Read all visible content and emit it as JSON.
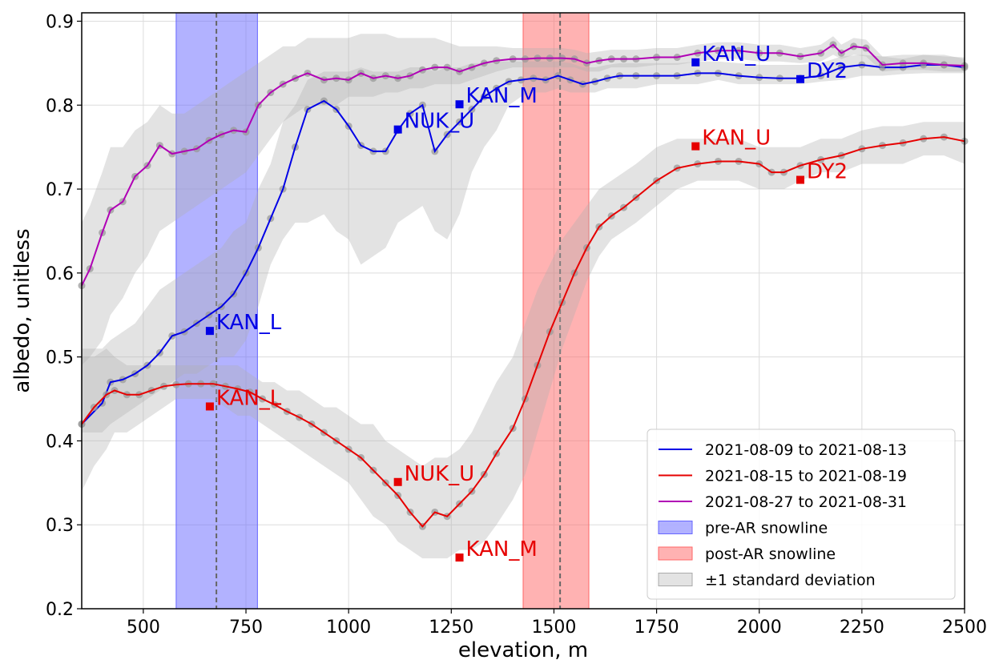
{
  "chart_data": {
    "type": "line",
    "xlabel": "elevation, m",
    "ylabel": "albedo, unitless",
    "xlim": [
      350,
      2500
    ],
    "ylim": [
      0.2,
      0.91
    ],
    "xticks": [
      500,
      750,
      1000,
      1250,
      1500,
      1750,
      2000,
      2250,
      2500
    ],
    "yticks": [
      0.2,
      0.3,
      0.4,
      0.5,
      0.6,
      0.7,
      0.8,
      0.9
    ],
    "grid": true,
    "legend_placement": "lower-right",
    "series": [
      {
        "name": "2021-08-09 to 2021-08-13",
        "color": "#0000e6",
        "x": [
          350,
          400,
          420,
          450,
          480,
          510,
          540,
          570,
          600,
          630,
          660,
          690,
          720,
          750,
          780,
          810,
          840,
          870,
          900,
          940,
          970,
          1000,
          1030,
          1060,
          1090,
          1120,
          1150,
          1180,
          1210,
          1240,
          1270,
          1300,
          1330,
          1360,
          1390,
          1420,
          1450,
          1480,
          1510,
          1540,
          1570,
          1600,
          1630,
          1660,
          1700,
          1750,
          1800,
          1850,
          1900,
          1950,
          2000,
          2050,
          2100,
          2150,
          2200,
          2250,
          2300,
          2350,
          2400,
          2450,
          2500
        ],
        "y": [
          0.42,
          0.445,
          0.47,
          0.473,
          0.48,
          0.49,
          0.505,
          0.525,
          0.53,
          0.54,
          0.55,
          0.56,
          0.575,
          0.6,
          0.63,
          0.665,
          0.7,
          0.75,
          0.795,
          0.805,
          0.795,
          0.775,
          0.752,
          0.745,
          0.745,
          0.77,
          0.79,
          0.8,
          0.745,
          0.765,
          0.78,
          0.795,
          0.81,
          0.82,
          0.828,
          0.83,
          0.832,
          0.83,
          0.835,
          0.83,
          0.825,
          0.828,
          0.832,
          0.835,
          0.835,
          0.835,
          0.835,
          0.838,
          0.838,
          0.835,
          0.833,
          0.832,
          0.832,
          0.835,
          0.845,
          0.848,
          0.845,
          0.845,
          0.848,
          0.848,
          0.845
        ],
        "std_lower": [
          0.41,
          0.41,
          0.42,
          0.43,
          0.44,
          0.45,
          0.46,
          0.47,
          0.48,
          0.48,
          0.49,
          0.5,
          0.5,
          0.52,
          0.56,
          0.61,
          0.64,
          0.66,
          0.66,
          0.67,
          0.65,
          0.64,
          0.61,
          0.62,
          0.63,
          0.66,
          0.67,
          0.68,
          0.65,
          0.64,
          0.67,
          0.72,
          0.75,
          0.77,
          0.8,
          0.81,
          0.815,
          0.815,
          0.82,
          0.815,
          0.815,
          0.815,
          0.82,
          0.82,
          0.82,
          0.825,
          0.825,
          0.825,
          0.83,
          0.825,
          0.825,
          0.825,
          0.825,
          0.828,
          0.83,
          0.835,
          0.835,
          0.837,
          0.838,
          0.838,
          0.838
        ],
        "std_upper": [
          0.51,
          0.51,
          0.52,
          0.53,
          0.54,
          0.56,
          0.58,
          0.59,
          0.6,
          0.61,
          0.62,
          0.63,
          0.65,
          0.66,
          0.7,
          0.73,
          0.78,
          0.8,
          0.83,
          0.84,
          0.84,
          0.84,
          0.845,
          0.84,
          0.84,
          0.84,
          0.845,
          0.845,
          0.84,
          0.845,
          0.845,
          0.85,
          0.85,
          0.852,
          0.852,
          0.852,
          0.852,
          0.852,
          0.852,
          0.85,
          0.845,
          0.845,
          0.848,
          0.85,
          0.85,
          0.85,
          0.85,
          0.852,
          0.852,
          0.85,
          0.848,
          0.848,
          0.848,
          0.85,
          0.858,
          0.86,
          0.858,
          0.855,
          0.86,
          0.86,
          0.855
        ]
      },
      {
        "name": "2021-08-15 to 2021-08-19",
        "color": "#e60000",
        "x": [
          350,
          380,
          410,
          430,
          460,
          490,
          520,
          550,
          580,
          610,
          640,
          670,
          700,
          730,
          760,
          790,
          820,
          850,
          880,
          910,
          940,
          970,
          1000,
          1030,
          1060,
          1090,
          1120,
          1150,
          1180,
          1210,
          1240,
          1270,
          1300,
          1330,
          1360,
          1400,
          1430,
          1460,
          1490,
          1520,
          1550,
          1580,
          1610,
          1640,
          1670,
          1700,
          1750,
          1800,
          1850,
          1900,
          1950,
          2000,
          2030,
          2060,
          2100,
          2150,
          2200,
          2250,
          2300,
          2350,
          2400,
          2450,
          2500
        ],
        "y": [
          0.42,
          0.44,
          0.455,
          0.46,
          0.455,
          0.455,
          0.46,
          0.465,
          0.467,
          0.468,
          0.468,
          0.468,
          0.465,
          0.462,
          0.458,
          0.45,
          0.443,
          0.435,
          0.428,
          0.42,
          0.41,
          0.4,
          0.39,
          0.38,
          0.365,
          0.35,
          0.335,
          0.315,
          0.298,
          0.315,
          0.31,
          0.325,
          0.34,
          0.36,
          0.385,
          0.415,
          0.45,
          0.49,
          0.53,
          0.565,
          0.6,
          0.63,
          0.655,
          0.668,
          0.678,
          0.69,
          0.71,
          0.725,
          0.73,
          0.733,
          0.733,
          0.73,
          0.72,
          0.72,
          0.728,
          0.735,
          0.74,
          0.748,
          0.752,
          0.755,
          0.76,
          0.762,
          0.757
        ],
        "std_lower": [
          0.34,
          0.37,
          0.39,
          0.41,
          0.41,
          0.42,
          0.43,
          0.44,
          0.45,
          0.45,
          0.45,
          0.45,
          0.44,
          0.43,
          0.43,
          0.42,
          0.41,
          0.4,
          0.39,
          0.38,
          0.37,
          0.36,
          0.35,
          0.33,
          0.31,
          0.3,
          0.28,
          0.27,
          0.26,
          0.26,
          0.26,
          0.27,
          0.27,
          0.28,
          0.3,
          0.33,
          0.36,
          0.41,
          0.46,
          0.51,
          0.55,
          0.59,
          0.62,
          0.64,
          0.65,
          0.66,
          0.68,
          0.7,
          0.71,
          0.71,
          0.71,
          0.7,
          0.7,
          0.7,
          0.71,
          0.72,
          0.72,
          0.73,
          0.73,
          0.73,
          0.74,
          0.74,
          0.73
        ],
        "std_upper": [
          0.5,
          0.5,
          0.51,
          0.5,
          0.49,
          0.49,
          0.49,
          0.49,
          0.49,
          0.49,
          0.49,
          0.49,
          0.49,
          0.49,
          0.48,
          0.47,
          0.47,
          0.46,
          0.46,
          0.45,
          0.44,
          0.44,
          0.43,
          0.42,
          0.42,
          0.4,
          0.39,
          0.38,
          0.37,
          0.38,
          0.38,
          0.39,
          0.41,
          0.44,
          0.47,
          0.5,
          0.54,
          0.58,
          0.61,
          0.64,
          0.66,
          0.68,
          0.7,
          0.71,
          0.72,
          0.73,
          0.75,
          0.76,
          0.76,
          0.76,
          0.76,
          0.75,
          0.75,
          0.75,
          0.75,
          0.76,
          0.76,
          0.77,
          0.775,
          0.775,
          0.78,
          0.78,
          0.78
        ]
      },
      {
        "name": "2021-08-27 to 2021-08-31",
        "color": "#b000b5",
        "x": [
          350,
          370,
          400,
          420,
          450,
          480,
          510,
          540,
          570,
          600,
          630,
          660,
          690,
          720,
          750,
          780,
          810,
          840,
          870,
          900,
          940,
          970,
          1000,
          1030,
          1060,
          1090,
          1120,
          1150,
          1180,
          1210,
          1240,
          1270,
          1300,
          1330,
          1360,
          1400,
          1430,
          1460,
          1490,
          1520,
          1550,
          1580,
          1610,
          1640,
          1670,
          1700,
          1750,
          1800,
          1850,
          1900,
          1950,
          2000,
          2050,
          2100,
          2150,
          2180,
          2200,
          2230,
          2260,
          2300,
          2350,
          2400,
          2450,
          2500
        ],
        "y": [
          0.585,
          0.605,
          0.648,
          0.675,
          0.685,
          0.715,
          0.728,
          0.752,
          0.742,
          0.745,
          0.748,
          0.758,
          0.765,
          0.77,
          0.768,
          0.8,
          0.815,
          0.825,
          0.832,
          0.838,
          0.83,
          0.832,
          0.83,
          0.838,
          0.832,
          0.835,
          0.832,
          0.835,
          0.842,
          0.845,
          0.845,
          0.84,
          0.845,
          0.85,
          0.853,
          0.855,
          0.855,
          0.856,
          0.856,
          0.856,
          0.855,
          0.85,
          0.853,
          0.855,
          0.855,
          0.855,
          0.857,
          0.857,
          0.862,
          0.865,
          0.865,
          0.862,
          0.862,
          0.858,
          0.862,
          0.872,
          0.862,
          0.87,
          0.868,
          0.848,
          0.85,
          0.85,
          0.848,
          0.847
        ],
        "std_lower": [
          0.49,
          0.5,
          0.52,
          0.55,
          0.57,
          0.6,
          0.62,
          0.65,
          0.66,
          0.67,
          0.68,
          0.69,
          0.7,
          0.71,
          0.72,
          0.74,
          0.76,
          0.78,
          0.79,
          0.8,
          0.8,
          0.8,
          0.81,
          0.81,
          0.81,
          0.815,
          0.815,
          0.82,
          0.82,
          0.825,
          0.825,
          0.825,
          0.83,
          0.835,
          0.84,
          0.845,
          0.845,
          0.845,
          0.845,
          0.845,
          0.845,
          0.84,
          0.84,
          0.845,
          0.845,
          0.845,
          0.848,
          0.848,
          0.852,
          0.855,
          0.855,
          0.852,
          0.852,
          0.85,
          0.852,
          0.86,
          0.855,
          0.86,
          0.858,
          0.84,
          0.842,
          0.842,
          0.84,
          0.84
        ],
        "std_upper": [
          0.66,
          0.68,
          0.72,
          0.75,
          0.75,
          0.77,
          0.78,
          0.8,
          0.79,
          0.79,
          0.8,
          0.81,
          0.82,
          0.83,
          0.84,
          0.85,
          0.86,
          0.87,
          0.87,
          0.88,
          0.88,
          0.88,
          0.88,
          0.885,
          0.885,
          0.885,
          0.88,
          0.88,
          0.88,
          0.88,
          0.875,
          0.87,
          0.87,
          0.87,
          0.87,
          0.868,
          0.868,
          0.868,
          0.868,
          0.868,
          0.866,
          0.862,
          0.864,
          0.866,
          0.866,
          0.866,
          0.868,
          0.868,
          0.872,
          0.875,
          0.875,
          0.872,
          0.872,
          0.868,
          0.872,
          0.882,
          0.872,
          0.88,
          0.878,
          0.858,
          0.86,
          0.86,
          0.858,
          0.857
        ]
      }
    ],
    "snowline_bands": [
      {
        "name": "pre-AR snowline",
        "color": "#6666ff",
        "x_range": [
          580,
          778
        ],
        "median": 678
      },
      {
        "name": "post-AR snowline",
        "color": "#ff6666",
        "x_range": [
          1425,
          1585
        ],
        "median": 1515
      }
    ],
    "std_legend": {
      "name": "±1 standard deviation",
      "color": "#b0b0b0"
    },
    "stations": [
      {
        "label": "KAN_L",
        "x": 662,
        "y": 0.531,
        "color": "#0000e6"
      },
      {
        "label": "NUK_U",
        "x": 1120,
        "y": 0.771,
        "color": "#0000e6"
      },
      {
        "label": "KAN_M",
        "x": 1270,
        "y": 0.801,
        "color": "#0000e6"
      },
      {
        "label": "KAN_U",
        "x": 1845,
        "y": 0.851,
        "color": "#0000e6"
      },
      {
        "label": "DY2",
        "x": 2100,
        "y": 0.831,
        "color": "#0000e6"
      },
      {
        "label": "KAN_L",
        "x": 662,
        "y": 0.441,
        "color": "#e60000"
      },
      {
        "label": "NUK_U",
        "x": 1120,
        "y": 0.351,
        "color": "#e60000"
      },
      {
        "label": "KAN_M",
        "x": 1270,
        "y": 0.261,
        "color": "#e60000"
      },
      {
        "label": "KAN_U",
        "x": 1845,
        "y": 0.751,
        "color": "#e60000"
      },
      {
        "label": "DY2",
        "x": 2100,
        "y": 0.711,
        "color": "#e60000"
      }
    ]
  }
}
